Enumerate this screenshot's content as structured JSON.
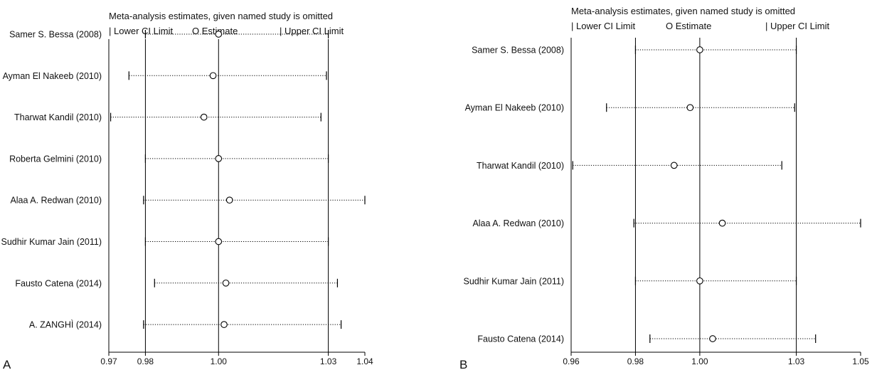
{
  "chart_data": [
    {
      "type": "scatter",
      "panel_label": "A",
      "title": "Meta-analysis estimates, given named study is omitted",
      "legend": {
        "placement": "top",
        "lower": "| Lower CI Limit",
        "estimate": "O Estimate",
        "upper": "| Upper CI Limit"
      },
      "xlim": [
        0.97,
        1.04
      ],
      "xticks": [
        "0.97",
        "0.98",
        "1.00",
        "1.03",
        "1.04"
      ],
      "xtick_values": [
        0.97,
        0.98,
        1.0,
        1.03,
        1.04
      ],
      "reference_lines": [
        0.98,
        1.0,
        1.03
      ],
      "grid": false,
      "studies": [
        {
          "name": "Samer S. Bessa (2008)",
          "lower": 0.98,
          "estimate": 1.0,
          "upper": 1.03
        },
        {
          "name": "Ayman El Nakeeb (2010)",
          "lower": 0.9755,
          "estimate": 0.9985,
          "upper": 1.0295
        },
        {
          "name": "Tharwat Kandil (2010)",
          "lower": 0.9705,
          "estimate": 0.996,
          "upper": 1.028
        },
        {
          "name": "Roberta Gelmini (2010)",
          "lower": 0.98,
          "estimate": 1.0,
          "upper": 1.03
        },
        {
          "name": "Alaa A. Redwan (2010)",
          "lower": 0.9795,
          "estimate": 1.003,
          "upper": 1.04
        },
        {
          "name": "Sudhir Kumar Jain (2011)",
          "lower": 0.98,
          "estimate": 1.0,
          "upper": 1.03
        },
        {
          "name": "Fausto Catena (2014)",
          "lower": 0.9825,
          "estimate": 1.002,
          "upper": 1.0325
        },
        {
          "name": "A. ZANGHÌ (2014)",
          "lower": 0.9795,
          "estimate": 1.0015,
          "upper": 1.0335
        }
      ]
    },
    {
      "type": "scatter",
      "panel_label": "B",
      "title": "Meta-analysis estimates, given named study is omitted",
      "legend": {
        "placement": "top",
        "lower": "| Lower CI Limit",
        "estimate": "O Estimate",
        "upper": "| Upper CI Limit"
      },
      "xlim": [
        0.96,
        1.05
      ],
      "xticks": [
        "0.96",
        "0.98",
        "1.00",
        "1.03",
        "1.05"
      ],
      "xtick_values": [
        0.96,
        0.98,
        1.0,
        1.03,
        1.05
      ],
      "reference_lines": [
        0.98,
        1.0,
        1.03
      ],
      "grid": false,
      "studies": [
        {
          "name": "Samer S. Bessa (2008)",
          "lower": 0.98,
          "estimate": 1.0,
          "upper": 1.03
        },
        {
          "name": "Ayman El Nakeeb (2010)",
          "lower": 0.971,
          "estimate": 0.997,
          "upper": 1.0295
        },
        {
          "name": "Tharwat Kandil (2010)",
          "lower": 0.9605,
          "estimate": 0.992,
          "upper": 1.0255
        },
        {
          "name": "Alaa A. Redwan (2010)",
          "lower": 0.9795,
          "estimate": 1.007,
          "upper": 1.05
        },
        {
          "name": "Sudhir Kumar Jain (2011)",
          "lower": 0.98,
          "estimate": 1.0,
          "upper": 1.03
        },
        {
          "name": "Fausto Catena (2014)",
          "lower": 0.9845,
          "estimate": 1.004,
          "upper": 1.036
        }
      ]
    }
  ]
}
